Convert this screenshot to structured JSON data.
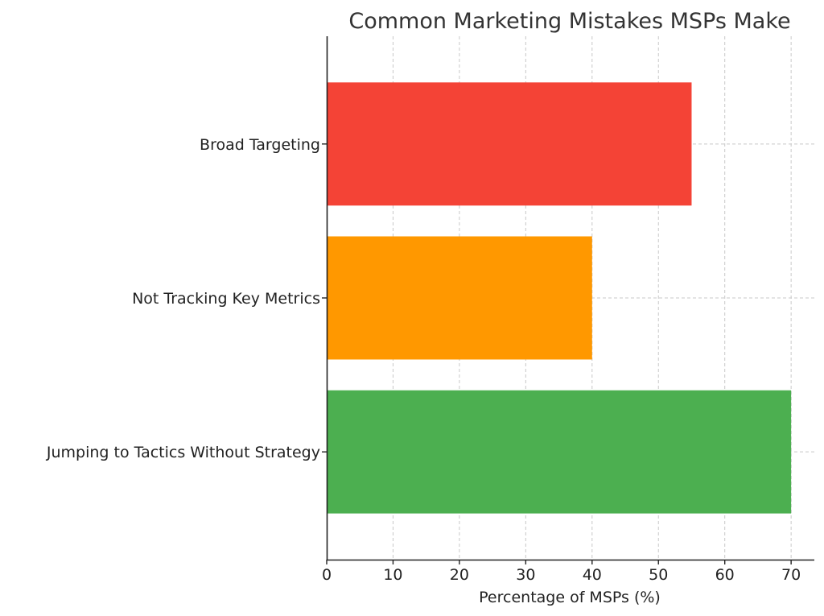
{
  "chart_data": {
    "type": "bar",
    "orientation": "horizontal",
    "title": "Common Marketing Mistakes MSPs Make",
    "xlabel": "Percentage of MSPs (%)",
    "ylabel": "",
    "categories": [
      "Jumping to Tactics Without Strategy",
      "Not Tracking Key Metrics",
      "Broad Targeting"
    ],
    "values": [
      70,
      40,
      55
    ],
    "colors": [
      "#4caf50",
      "#ff9800",
      "#f44336"
    ],
    "xlim": [
      0,
      73.5
    ],
    "xticks": [
      0,
      10,
      20,
      30,
      40,
      50,
      60,
      70
    ],
    "grid": true,
    "legend": "none"
  }
}
